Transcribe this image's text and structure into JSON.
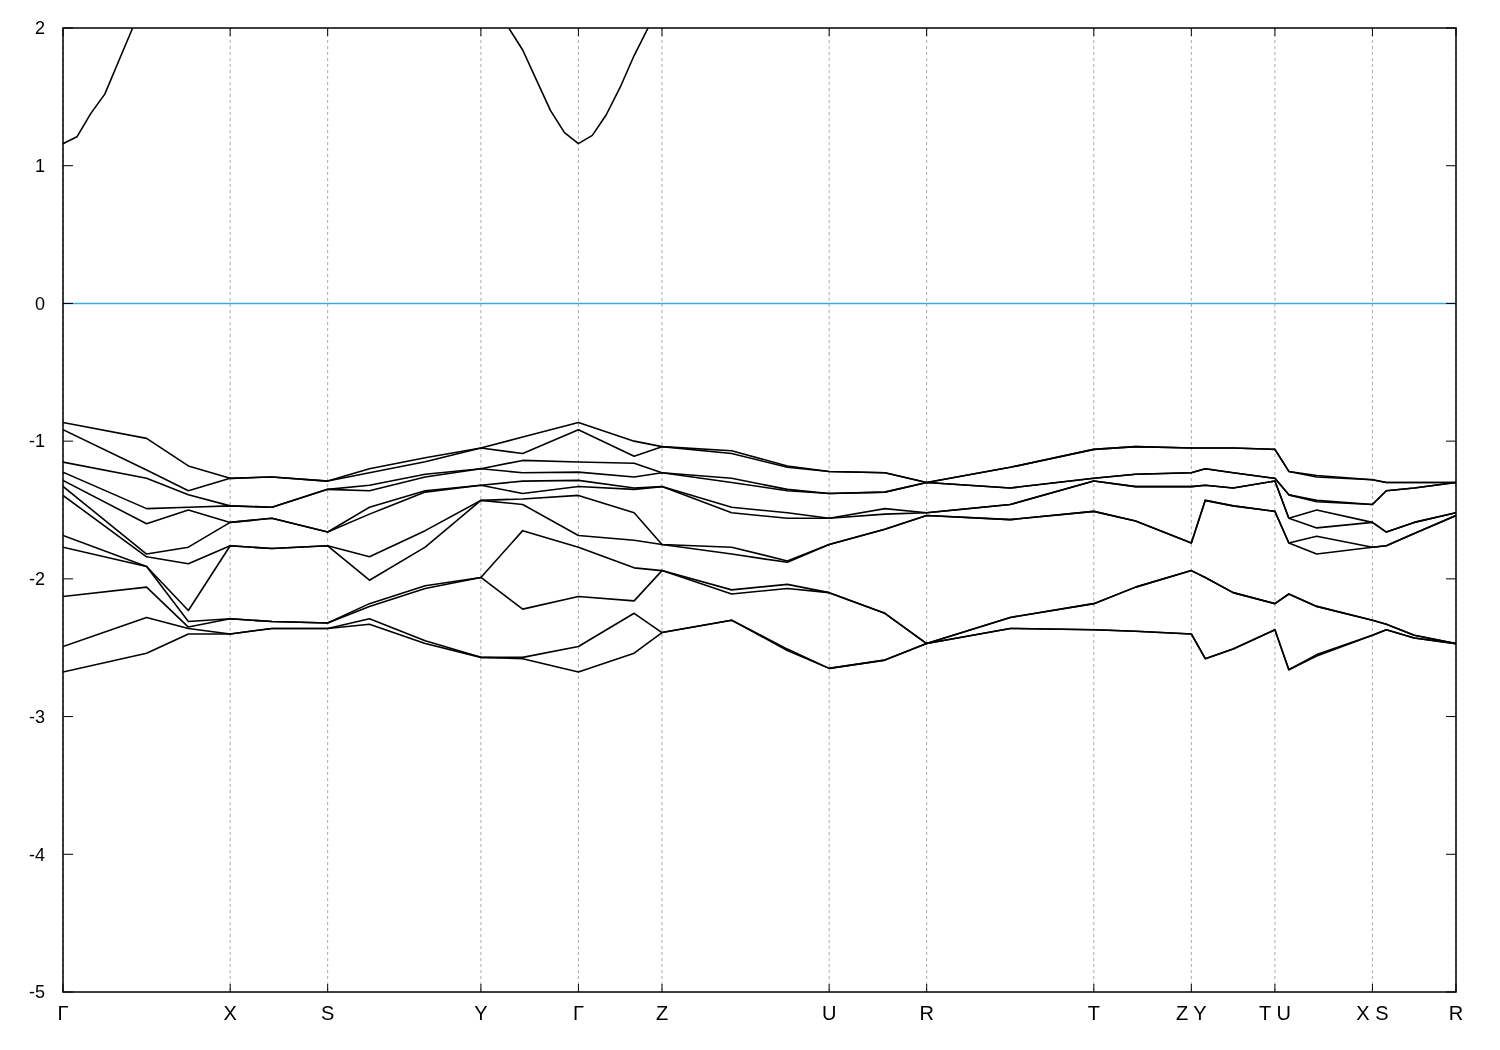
{
  "chart_data": {
    "type": "line",
    "categories": [
      "Γ",
      null,
      null,
      null,
      null,
      null,
      null,
      null,
      null,
      null,
      null,
      null,
      "X",
      null,
      null,
      null,
      null,
      null,
      null,
      "S",
      null,
      null,
      null,
      null,
      null,
      null,
      null,
      null,
      null,
      null,
      "Y",
      null,
      null,
      null,
      null,
      null,
      null,
      "Γ",
      null,
      null,
      null,
      null,
      null,
      "Z",
      null,
      null,
      null,
      null,
      null,
      null,
      null,
      null,
      null,
      null,
      null,
      "U",
      null,
      null,
      null,
      null,
      null,
      null,
      "R",
      null,
      null,
      null,
      null,
      null,
      null,
      null,
      null,
      null,
      null,
      null,
      "T",
      null,
      null,
      null,
      null,
      null,
      null,
      "Z Y",
      null,
      null,
      null,
      null,
      null,
      "T U",
      null,
      null,
      null,
      null,
      null,
      null,
      "X S",
      null,
      null,
      null,
      null,
      null,
      "R"
    ],
    "ylim": [
      -5,
      2
    ],
    "yticks": [
      -5,
      -4,
      -3,
      -2,
      -1,
      0,
      1,
      2
    ],
    "grid": "x",
    "ref_lines": [
      {
        "axis": "y",
        "value": 0,
        "color": "#3fa9dd"
      }
    ],
    "series": [
      {
        "color": "#000000",
        "values": [
          1.16,
          1.21,
          1.38,
          1.52,
          1.76,
          2.0,
          null,
          null,
          null,
          null,
          null,
          null,
          null,
          null,
          null,
          null,
          null,
          null,
          null,
          null,
          null,
          null,
          null,
          null,
          null,
          null,
          null,
          null,
          null,
          null,
          null,
          null,
          null,
          null,
          null,
          null,
          null,
          null,
          null,
          null,
          null,
          null,
          null,
          null,
          null,
          null,
          null,
          null,
          null,
          null,
          null,
          null,
          null,
          null,
          null,
          null,
          null,
          null,
          null,
          null,
          null,
          null,
          null,
          null,
          null,
          null,
          null,
          null,
          null,
          null,
          null,
          null,
          null,
          null,
          null,
          null,
          null,
          null,
          null,
          null,
          null,
          null,
          null,
          null,
          null,
          null,
          null,
          null,
          null,
          null,
          null,
          null,
          null,
          null,
          null,
          null,
          null,
          null,
          null,
          null,
          null
        ]
      },
      {
        "color": "#000000",
        "values": [
          null,
          null,
          null,
          null,
          null,
          null,
          null,
          null,
          null,
          null,
          null,
          null,
          null,
          null,
          null,
          null,
          null,
          null,
          null,
          null,
          null,
          null,
          null,
          null,
          null,
          null,
          null,
          null,
          null,
          null,
          null,
          null,
          2.0,
          1.84,
          1.62,
          1.4,
          1.24,
          1.16,
          1.22,
          1.37,
          1.57,
          1.8,
          2.0,
          null,
          null,
          null,
          null,
          null,
          null,
          null,
          null,
          null,
          null,
          null,
          null,
          null,
          null,
          null,
          null,
          null,
          null,
          null,
          null,
          null,
          null,
          null,
          null,
          null,
          null,
          null,
          null,
          null,
          null,
          null,
          null,
          null,
          null,
          null,
          null,
          null,
          null,
          null,
          null,
          null,
          null,
          null,
          null,
          null,
          null,
          null,
          null,
          null,
          null,
          null,
          null,
          null,
          null,
          null,
          null,
          null,
          null
        ]
      },
      {
        "color": "#000000",
        "values": [
          -0.864,
          null,
          null,
          null,
          null,
          null,
          -0.98,
          null,
          null,
          -1.18,
          null,
          null,
          -1.27,
          null,
          null,
          -1.26,
          null,
          null,
          null,
          -1.29,
          null,
          null,
          -1.2,
          null,
          null,
          null,
          -1.12,
          null,
          null,
          null,
          -1.05,
          null,
          null,
          -0.97,
          null,
          null,
          null,
          -0.864,
          null,
          null,
          null,
          -1.0,
          null,
          -1.04,
          null,
          null,
          null,
          null,
          -1.07,
          null,
          null,
          null,
          -1.18,
          null,
          null,
          -1.22,
          null,
          null,
          null,
          -1.23,
          null,
          null,
          -1.3,
          null,
          null,
          null,
          null,
          null,
          -1.19,
          null,
          null,
          null,
          null,
          null,
          -1.06,
          null,
          null,
          -1.04,
          null,
          null,
          null,
          -1.05,
          -1.05,
          null,
          -1.05,
          null,
          null,
          -1.06,
          -1.22,
          null,
          -1.25,
          null,
          null,
          null,
          -1.28,
          -1.3,
          null,
          -1.3,
          null,
          null,
          -1.3
        ]
      },
      {
        "color": "#000000",
        "values": [
          -0.917,
          null,
          null,
          null,
          null,
          null,
          -1.21,
          null,
          null,
          -1.36,
          null,
          null,
          -1.27,
          null,
          null,
          -1.26,
          null,
          null,
          null,
          -1.29,
          null,
          null,
          -1.23,
          null,
          null,
          null,
          -1.15,
          null,
          null,
          null,
          -1.05,
          null,
          null,
          -1.09,
          null,
          null,
          null,
          -0.917,
          null,
          null,
          null,
          -1.11,
          null,
          -1.04,
          null,
          null,
          null,
          null,
          -1.09,
          null,
          null,
          null,
          -1.19,
          null,
          null,
          -1.22,
          null,
          null,
          null,
          -1.23,
          null,
          null,
          -1.3,
          null,
          null,
          null,
          null,
          null,
          -1.19,
          null,
          null,
          null,
          null,
          null,
          -1.06,
          null,
          null,
          -1.04,
          null,
          null,
          null,
          -1.05,
          -1.05,
          null,
          -1.05,
          null,
          null,
          -1.06,
          -1.22,
          null,
          -1.26,
          null,
          null,
          null,
          -1.28,
          -1.3,
          null,
          -1.3,
          null,
          null,
          -1.3
        ]
      },
      {
        "color": "#000000",
        "values": [
          -1.152,
          null,
          null,
          null,
          null,
          null,
          -1.27,
          null,
          null,
          -1.39,
          null,
          null,
          -1.47,
          null,
          null,
          -1.48,
          null,
          null,
          null,
          -1.35,
          null,
          null,
          -1.32,
          null,
          null,
          null,
          -1.24,
          null,
          null,
          null,
          -1.2,
          null,
          null,
          -1.14,
          null,
          null,
          null,
          -1.152,
          null,
          null,
          null,
          -1.16,
          null,
          -1.23,
          null,
          null,
          null,
          null,
          -1.27,
          null,
          null,
          null,
          -1.35,
          null,
          null,
          -1.38,
          null,
          null,
          null,
          -1.37,
          null,
          null,
          -1.3,
          null,
          null,
          null,
          null,
          null,
          -1.34,
          null,
          null,
          null,
          null,
          null,
          -1.27,
          null,
          null,
          -1.24,
          null,
          null,
          null,
          -1.23,
          -1.2,
          null,
          -1.23,
          null,
          null,
          -1.27,
          -1.39,
          null,
          -1.43,
          null,
          null,
          null,
          -1.46,
          -1.36,
          null,
          -1.34,
          null,
          null,
          -1.3
        ]
      },
      {
        "color": "#000000",
        "values": [
          -1.225,
          null,
          null,
          null,
          null,
          null,
          -1.49,
          null,
          null,
          -1.48,
          null,
          null,
          -1.47,
          null,
          null,
          -1.48,
          null,
          null,
          null,
          -1.35,
          null,
          null,
          -1.36,
          null,
          null,
          null,
          -1.26,
          null,
          null,
          null,
          -1.2,
          null,
          null,
          -1.23,
          null,
          null,
          null,
          -1.225,
          null,
          null,
          null,
          -1.26,
          null,
          -1.23,
          null,
          null,
          null,
          null,
          -1.3,
          null,
          null,
          null,
          -1.36,
          null,
          null,
          -1.38,
          null,
          null,
          null,
          -1.37,
          null,
          null,
          -1.3,
          null,
          null,
          null,
          null,
          null,
          -1.34,
          null,
          null,
          null,
          null,
          null,
          -1.27,
          null,
          null,
          -1.24,
          null,
          null,
          null,
          -1.23,
          -1.2,
          null,
          -1.23,
          null,
          null,
          -1.27,
          -1.39,
          null,
          -1.44,
          null,
          null,
          null,
          -1.46,
          -1.36,
          null,
          -1.34,
          null,
          null,
          -1.3
        ]
      },
      {
        "color": "#000000",
        "values": [
          -1.285,
          null,
          null,
          null,
          null,
          null,
          -1.6,
          null,
          null,
          -1.5,
          null,
          null,
          -1.59,
          null,
          null,
          -1.56,
          null,
          null,
          null,
          -1.66,
          null,
          null,
          -1.48,
          null,
          null,
          null,
          -1.36,
          null,
          null,
          null,
          -1.32,
          null,
          null,
          -1.29,
          null,
          null,
          null,
          -1.285,
          null,
          null,
          null,
          -1.34,
          null,
          -1.33,
          null,
          null,
          null,
          null,
          -1.48,
          null,
          null,
          null,
          -1.52,
          null,
          null,
          -1.56,
          null,
          null,
          null,
          -1.49,
          null,
          null,
          -1.52,
          null,
          null,
          null,
          null,
          null,
          -1.46,
          null,
          null,
          null,
          null,
          null,
          -1.29,
          null,
          null,
          -1.33,
          null,
          null,
          null,
          -1.33,
          -1.32,
          null,
          -1.34,
          null,
          null,
          -1.29,
          -1.56,
          null,
          -1.5,
          null,
          null,
          null,
          -1.59,
          -1.66,
          null,
          -1.59,
          null,
          null,
          -1.52
        ]
      },
      {
        "color": "#000000",
        "values": [
          -1.329,
          null,
          null,
          null,
          null,
          null,
          -1.82,
          null,
          null,
          -1.77,
          null,
          null,
          -1.59,
          null,
          null,
          -1.56,
          null,
          null,
          null,
          -1.66,
          null,
          null,
          -1.53,
          null,
          null,
          null,
          -1.37,
          null,
          null,
          null,
          -1.32,
          null,
          null,
          -1.38,
          null,
          null,
          null,
          -1.329,
          null,
          null,
          null,
          -1.35,
          null,
          -1.33,
          null,
          null,
          null,
          null,
          -1.52,
          null,
          null,
          null,
          -1.56,
          null,
          null,
          -1.56,
          null,
          null,
          null,
          -1.53,
          null,
          null,
          -1.52,
          null,
          null,
          null,
          null,
          null,
          -1.46,
          null,
          null,
          null,
          null,
          null,
          -1.29,
          null,
          null,
          -1.33,
          null,
          null,
          null,
          -1.33,
          -1.32,
          null,
          -1.34,
          null,
          null,
          -1.29,
          -1.56,
          null,
          -1.63,
          null,
          null,
          null,
          -1.59,
          -1.66,
          null,
          -1.59,
          null,
          null,
          -1.52
        ]
      },
      {
        "color": "#000000",
        "values": [
          -1.394,
          null,
          null,
          null,
          null,
          null,
          -1.84,
          null,
          null,
          -1.89,
          null,
          null,
          -1.76,
          null,
          null,
          -1.78,
          null,
          null,
          null,
          -1.76,
          null,
          null,
          -1.84,
          null,
          null,
          null,
          -1.65,
          null,
          null,
          null,
          -1.43,
          null,
          null,
          -1.42,
          null,
          null,
          null,
          -1.394,
          null,
          null,
          null,
          -1.52,
          null,
          -1.75,
          null,
          null,
          null,
          null,
          -1.77,
          null,
          null,
          null,
          -1.87,
          null,
          null,
          -1.75,
          null,
          null,
          null,
          -1.64,
          null,
          null,
          -1.54,
          null,
          null,
          null,
          null,
          null,
          -1.57,
          null,
          null,
          null,
          null,
          null,
          -1.51,
          null,
          null,
          -1.58,
          null,
          null,
          null,
          -1.74,
          -1.43,
          null,
          -1.47,
          null,
          null,
          -1.51,
          -1.74,
          null,
          -1.69,
          null,
          null,
          null,
          -1.77,
          -1.76,
          null,
          -1.67,
          null,
          null,
          -1.54
        ]
      },
      {
        "color": "#000000",
        "values": [
          -1.685,
          null,
          null,
          null,
          null,
          null,
          -1.91,
          null,
          null,
          -2.23,
          null,
          null,
          -1.76,
          null,
          null,
          -1.78,
          null,
          null,
          null,
          -1.76,
          null,
          null,
          -2.01,
          null,
          null,
          null,
          -1.77,
          null,
          null,
          null,
          -1.43,
          null,
          null,
          -1.46,
          null,
          null,
          null,
          -1.685,
          null,
          null,
          null,
          -1.72,
          null,
          -1.75,
          null,
          null,
          null,
          null,
          -1.82,
          null,
          null,
          null,
          -1.88,
          null,
          null,
          -1.75,
          null,
          null,
          null,
          -1.64,
          null,
          null,
          -1.54,
          null,
          null,
          null,
          null,
          null,
          -1.57,
          null,
          null,
          null,
          null,
          null,
          -1.51,
          null,
          null,
          -1.58,
          null,
          null,
          null,
          -1.74,
          -1.43,
          null,
          -1.47,
          null,
          null,
          -1.51,
          -1.74,
          null,
          -1.82,
          null,
          null,
          null,
          -1.77,
          -1.76,
          null,
          -1.67,
          null,
          null,
          -1.54
        ]
      },
      {
        "color": "#000000",
        "values": [
          -1.77,
          null,
          null,
          null,
          null,
          null,
          -1.91,
          null,
          null,
          -2.31,
          null,
          null,
          -2.29,
          null,
          null,
          -2.31,
          null,
          null,
          null,
          -2.32,
          null,
          null,
          -2.18,
          null,
          null,
          null,
          -2.05,
          null,
          null,
          null,
          -1.99,
          null,
          null,
          -1.65,
          null,
          null,
          null,
          -1.77,
          null,
          null,
          null,
          -1.92,
          null,
          -1.94,
          null,
          null,
          null,
          null,
          -2.08,
          null,
          null,
          null,
          -2.04,
          null,
          null,
          -2.1,
          null,
          null,
          null,
          -2.25,
          null,
          null,
          -2.47,
          null,
          null,
          null,
          null,
          null,
          -2.28,
          null,
          null,
          null,
          null,
          null,
          -2.18,
          null,
          null,
          -2.06,
          null,
          null,
          null,
          -1.94,
          -1.99,
          null,
          -2.1,
          null,
          null,
          -2.18,
          -2.11,
          null,
          -2.2,
          null,
          null,
          null,
          -2.3,
          -2.33,
          null,
          -2.41,
          null,
          null,
          -2.47
        ]
      },
      {
        "color": "#000000",
        "values": [
          -2.128,
          null,
          null,
          null,
          null,
          null,
          -2.06,
          null,
          null,
          -2.35,
          null,
          null,
          -2.29,
          null,
          null,
          -2.31,
          null,
          null,
          null,
          -2.32,
          null,
          null,
          -2.2,
          null,
          null,
          null,
          -2.07,
          null,
          null,
          null,
          -1.99,
          null,
          null,
          -2.22,
          null,
          null,
          null,
          -2.128,
          null,
          null,
          null,
          -2.16,
          null,
          -1.94,
          null,
          null,
          null,
          null,
          -2.11,
          null,
          null,
          null,
          -2.07,
          null,
          null,
          -2.1,
          null,
          null,
          null,
          -2.25,
          null,
          null,
          -2.47,
          null,
          null,
          null,
          null,
          null,
          -2.28,
          null,
          null,
          null,
          null,
          null,
          -2.18,
          null,
          null,
          -2.06,
          null,
          null,
          null,
          -1.94,
          -1.99,
          null,
          -2.1,
          null,
          null,
          -2.18,
          -2.11,
          null,
          -2.2,
          null,
          null,
          null,
          -2.3,
          -2.33,
          null,
          -2.41,
          null,
          null,
          -2.47
        ]
      },
      {
        "color": "#000000",
        "values": [
          -2.491,
          null,
          null,
          null,
          null,
          null,
          -2.28,
          null,
          null,
          -2.36,
          null,
          null,
          -2.4,
          null,
          null,
          -2.36,
          null,
          null,
          null,
          -2.36,
          null,
          null,
          -2.29,
          null,
          null,
          null,
          -2.45,
          null,
          null,
          null,
          -2.57,
          null,
          null,
          -2.57,
          null,
          null,
          null,
          -2.491,
          null,
          null,
          null,
          -2.25,
          null,
          -2.39,
          null,
          null,
          null,
          null,
          -2.3,
          null,
          null,
          null,
          -2.51,
          null,
          null,
          -2.65,
          null,
          null,
          null,
          -2.59,
          null,
          null,
          -2.47,
          null,
          null,
          null,
          null,
          null,
          -2.36,
          null,
          null,
          null,
          null,
          null,
          -2.37,
          null,
          null,
          -2.38,
          null,
          null,
          null,
          -2.4,
          -2.58,
          null,
          -2.51,
          null,
          null,
          -2.37,
          -2.66,
          null,
          -2.55,
          null,
          null,
          null,
          -2.41,
          -2.37,
          null,
          -2.43,
          null,
          null,
          -2.47
        ]
      },
      {
        "color": "#000000",
        "values": [
          -2.677,
          null,
          null,
          null,
          null,
          null,
          -2.54,
          null,
          null,
          -2.4,
          null,
          null,
          -2.4,
          null,
          null,
          -2.36,
          null,
          null,
          null,
          -2.36,
          null,
          null,
          -2.33,
          null,
          null,
          null,
          -2.47,
          null,
          null,
          null,
          -2.57,
          null,
          null,
          -2.58,
          null,
          null,
          null,
          -2.677,
          null,
          null,
          null,
          -2.54,
          null,
          -2.39,
          null,
          null,
          null,
          null,
          -2.3,
          null,
          null,
          null,
          -2.52,
          null,
          null,
          -2.65,
          null,
          null,
          null,
          -2.59,
          null,
          null,
          -2.47,
          null,
          null,
          null,
          null,
          null,
          -2.36,
          null,
          null,
          null,
          null,
          null,
          -2.37,
          null,
          null,
          -2.38,
          null,
          null,
          null,
          -2.4,
          -2.58,
          null,
          -2.51,
          null,
          null,
          -2.37,
          -2.66,
          null,
          -2.56,
          null,
          null,
          null,
          -2.41,
          -2.37,
          null,
          -2.43,
          null,
          null,
          -2.47
        ]
      }
    ]
  }
}
